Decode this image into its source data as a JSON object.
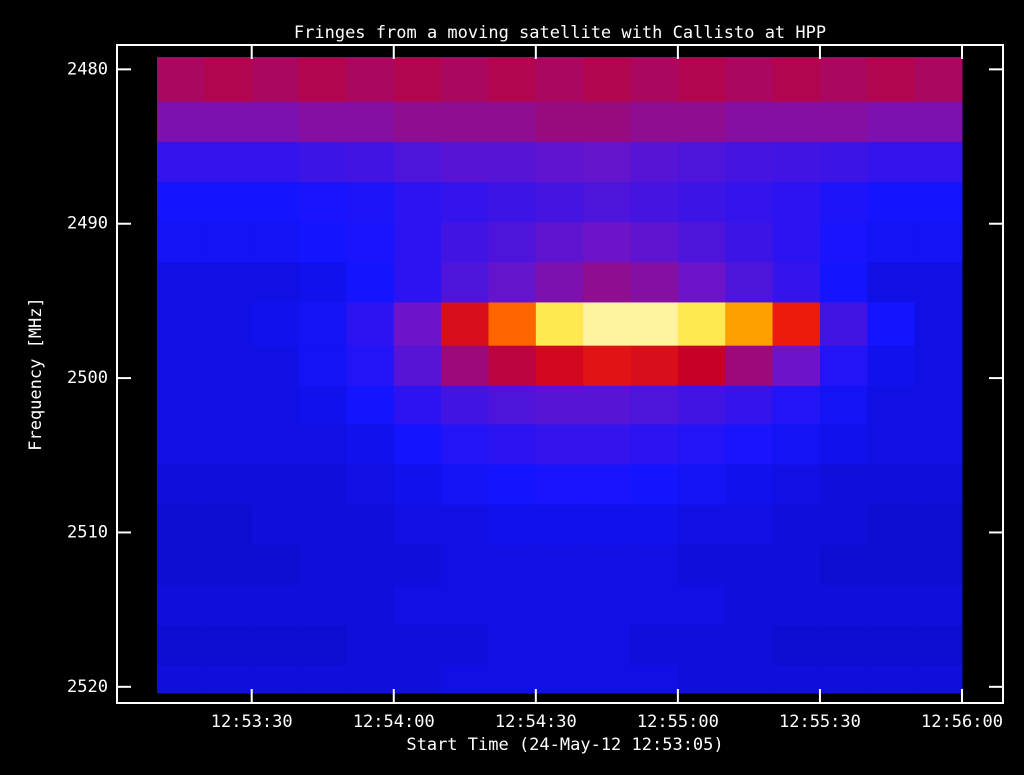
{
  "chart_data": {
    "type": "heatmap",
    "title": "Fringes from a moving satellite with Callisto at HPP",
    "x_label": "Start Time (24-May-12 12:53:05)",
    "y_label": "Frequency [MHz]",
    "xlim": [
      "12:53:10",
      "12:56:00"
    ],
    "xticks": [
      "12:53:30",
      "12:54:00",
      "12:54:30",
      "12:55:00",
      "12:55:30",
      "12:56:00"
    ],
    "ylim": [
      2520.4,
      2479.2
    ],
    "yticks": [
      2480,
      2490,
      2500,
      2510,
      2520
    ],
    "xbins": [
      "12:53:10",
      "12:53:20",
      "12:53:30",
      "12:53:40",
      "12:53:50",
      "12:54:00",
      "12:54:10",
      "12:54:20",
      "12:54:30",
      "12:54:40",
      "12:54:50",
      "12:55:00",
      "12:55:10",
      "12:55:20",
      "12:55:30",
      "12:55:40",
      "12:55:50",
      "12:56:00"
    ],
    "ybins": [
      2479.2,
      2482.1,
      2484.7,
      2487.3,
      2489.9,
      2492.5,
      2495.1,
      2497.9,
      2500.5,
      2503.0,
      2505.6,
      2508.2,
      2510.8,
      2513.4,
      2516.0,
      2518.6,
      2520.4
    ],
    "values": [
      [
        48,
        50,
        48,
        50,
        48,
        50,
        48,
        50,
        48,
        50,
        48,
        50,
        48,
        50,
        48,
        50,
        48
      ],
      [
        38,
        38,
        38,
        40,
        40,
        42,
        42,
        42,
        44,
        44,
        42,
        42,
        40,
        40,
        40,
        38,
        38
      ],
      [
        22,
        22,
        22,
        24,
        25,
        28,
        30,
        30,
        32,
        33,
        30,
        28,
        26,
        25,
        24,
        22,
        22
      ],
      [
        15,
        15,
        15,
        16,
        17,
        20,
        22,
        24,
        26,
        28,
        26,
        24,
        22,
        20,
        17,
        15,
        15
      ],
      [
        14,
        14,
        14,
        15,
        16,
        20,
        25,
        28,
        32,
        35,
        32,
        28,
        24,
        20,
        16,
        14,
        14
      ],
      [
        12,
        12,
        12,
        13,
        15,
        20,
        28,
        33,
        38,
        42,
        40,
        35,
        28,
        22,
        15,
        12,
        12
      ],
      [
        12,
        12,
        13,
        14,
        20,
        35,
        60,
        75,
        90,
        95,
        95,
        90,
        80,
        65,
        25,
        15,
        12
      ],
      [
        12,
        12,
        12,
        14,
        18,
        30,
        45,
        52,
        58,
        62,
        60,
        55,
        45,
        35,
        18,
        13,
        12
      ],
      [
        12,
        12,
        12,
        13,
        15,
        20,
        25,
        28,
        30,
        30,
        28,
        25,
        22,
        18,
        14,
        12,
        12
      ],
      [
        12,
        12,
        12,
        12,
        13,
        15,
        18,
        20,
        22,
        22,
        20,
        18,
        16,
        14,
        13,
        12,
        12
      ],
      [
        11,
        11,
        11,
        11,
        12,
        13,
        14,
        15,
        16,
        16,
        15,
        14,
        13,
        12,
        11,
        11,
        11
      ],
      [
        10,
        10,
        11,
        11,
        11,
        12,
        12,
        13,
        13,
        13,
        13,
        12,
        12,
        11,
        11,
        10,
        10
      ],
      [
        10,
        10,
        10,
        11,
        11,
        11,
        12,
        12,
        12,
        12,
        12,
        11,
        11,
        11,
        10,
        10,
        10
      ],
      [
        11,
        11,
        11,
        11,
        11,
        12,
        12,
        12,
        12,
        12,
        12,
        12,
        11,
        11,
        11,
        11,
        11
      ],
      [
        10,
        10,
        10,
        10,
        11,
        11,
        11,
        12,
        12,
        12,
        11,
        11,
        11,
        10,
        10,
        10,
        10
      ],
      [
        11,
        11,
        11,
        11,
        11,
        11,
        12,
        12,
        12,
        12,
        12,
        11,
        11,
        11,
        11,
        11,
        11
      ]
    ]
  }
}
